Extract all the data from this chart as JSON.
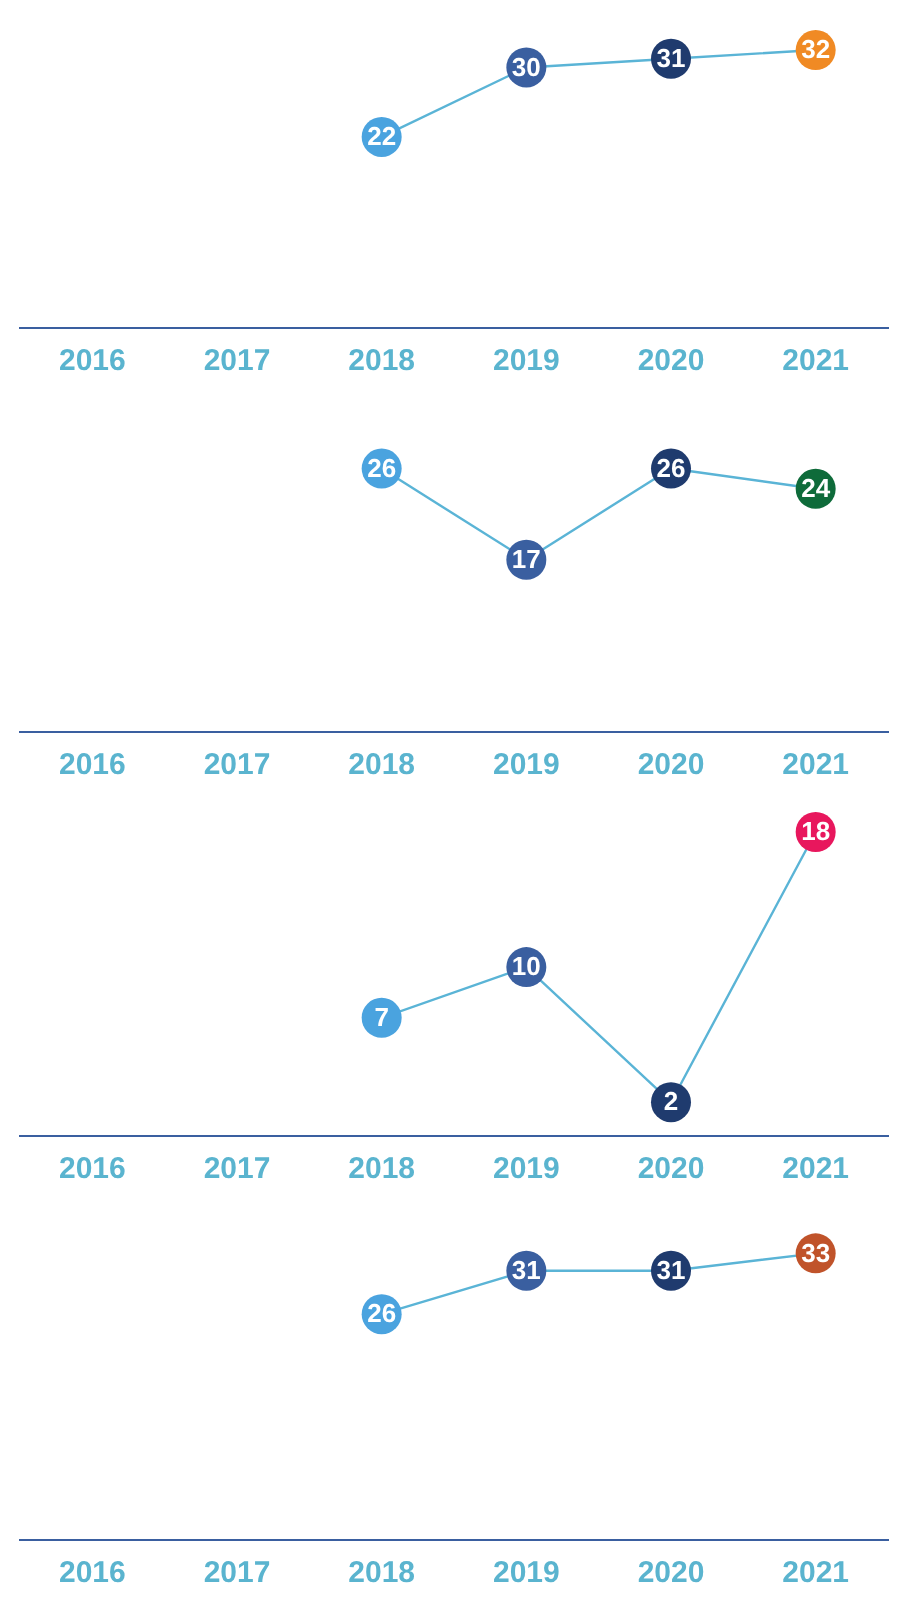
{
  "chart_data": [
    {
      "type": "line",
      "categories": [
        "2016",
        "2017",
        "2018",
        "2019",
        "2020",
        "2021"
      ],
      "series": [
        {
          "color": "#5ab4d6",
          "colors": [
            null,
            null,
            "#4aa3df",
            "#3a5fa0",
            "#1f3b6e",
            "#f08a24"
          ],
          "values": [
            null,
            null,
            22,
            30,
            31,
            32
          ]
        }
      ],
      "data_labels": true,
      "tick_labels": "x",
      "grid": false,
      "legend": false,
      "marker": "circle"
    },
    {
      "type": "line",
      "categories": [
        "2016",
        "2017",
        "2018",
        "2019",
        "2020",
        "2021"
      ],
      "series": [
        {
          "color": "#5ab4d6",
          "colors": [
            null,
            null,
            "#4aa3df",
            "#3a5fa0",
            "#1f3b6e",
            "#0e6b3a"
          ],
          "values": [
            null,
            null,
            26,
            17,
            26,
            24
          ]
        }
      ],
      "data_labels": true,
      "tick_labels": "x",
      "grid": false,
      "legend": false,
      "marker": "circle"
    },
    {
      "type": "line",
      "categories": [
        "2016",
        "2017",
        "2018",
        "2019",
        "2020",
        "2021"
      ],
      "series": [
        {
          "color": "#5ab4d6",
          "colors": [
            null,
            null,
            "#4aa3df",
            "#3a5fa0",
            "#1f3b6e",
            "#e8175d"
          ],
          "values": [
            null,
            null,
            7,
            10,
            2,
            18
          ]
        }
      ],
      "data_labels": true,
      "tick_labels": "x",
      "grid": false,
      "legend": false,
      "marker": "circle"
    },
    {
      "type": "line",
      "categories": [
        "2016",
        "2017",
        "2018",
        "2019",
        "2020",
        "2021"
      ],
      "series": [
        {
          "color": "#5ab4d6",
          "colors": [
            null,
            null,
            "#4aa3df",
            "#3a5fa0",
            "#1f3b6e",
            "#c0532a"
          ],
          "values": [
            null,
            null,
            26,
            31,
            31,
            33
          ]
        }
      ],
      "data_labels": true,
      "tick_labels": "x",
      "grid": false,
      "legend": false,
      "marker": "circle"
    }
  ]
}
